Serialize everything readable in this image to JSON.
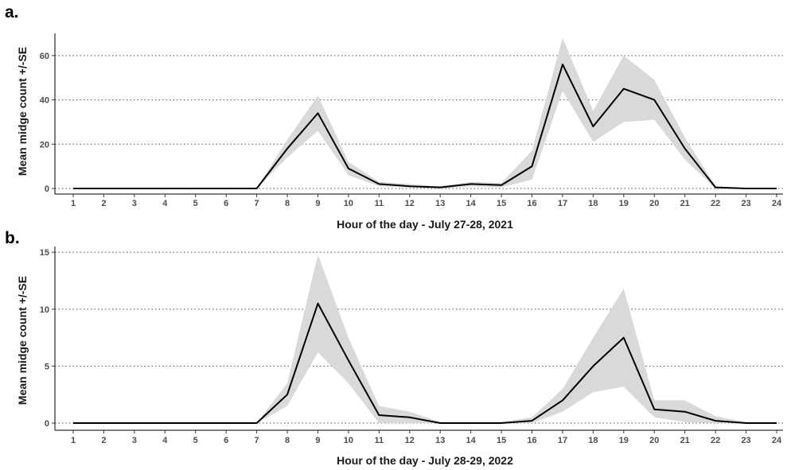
{
  "chart_data": [
    {
      "panel_label": "a.",
      "type": "area",
      "xlabel": "Hour of the day - July 27-28, 2021",
      "ylabel": "Mean midge count +/-SE",
      "xlim": [
        1,
        24
      ],
      "ylim": [
        0,
        70
      ],
      "yticks": [
        0,
        20,
        40,
        60
      ],
      "x": [
        "1",
        "2",
        "3",
        "4",
        "5",
        "6",
        "7",
        "8",
        "9",
        "10",
        "11",
        "12",
        "13",
        "14",
        "15",
        "16",
        "17",
        "18",
        "19",
        "20",
        "21",
        "22",
        "23",
        "24"
      ],
      "series": [
        {
          "values": [
            0,
            0,
            0,
            0,
            0,
            0,
            0,
            18,
            34,
            9,
            2,
            1,
            0.5,
            2,
            1.5,
            10,
            56,
            28,
            45,
            40,
            18,
            0.5,
            0,
            0
          ],
          "upper": [
            0,
            0,
            0,
            0,
            0,
            0,
            0,
            22,
            42,
            12,
            3,
            2,
            1,
            3,
            2.5,
            17,
            68,
            35,
            60,
            49,
            23,
            1,
            0,
            0
          ],
          "lower": [
            0,
            0,
            0,
            0,
            0,
            0,
            0,
            14,
            26,
            6,
            1,
            0.5,
            0,
            1,
            0.5,
            4,
            44,
            21,
            30,
            31,
            13,
            0,
            0,
            0
          ]
        }
      ],
      "grid": "horizontal dotted",
      "legend": "none"
    },
    {
      "panel_label": "b.",
      "type": "area",
      "xlabel": "Hour of the day - July 28-29, 2022",
      "ylabel": "Mean midge count +/-SE",
      "xlim": [
        1,
        24
      ],
      "ylim": [
        0,
        15.5
      ],
      "yticks": [
        0,
        5,
        10,
        15
      ],
      "x": [
        "1",
        "2",
        "3",
        "4",
        "5",
        "6",
        "7",
        "8",
        "9",
        "10",
        "11",
        "12",
        "13",
        "14",
        "15",
        "16",
        "17",
        "18",
        "19",
        "20",
        "21",
        "22",
        "23",
        "24"
      ],
      "series": [
        {
          "values": [
            0,
            0,
            0,
            0,
            0,
            0,
            0,
            2.5,
            10.5,
            5.5,
            0.7,
            0.5,
            0,
            0,
            0,
            0.2,
            2,
            5,
            7.5,
            1.2,
            1,
            0.2,
            0,
            0
          ],
          "upper": [
            0,
            0,
            0,
            0,
            0,
            0,
            0,
            3.5,
            14.8,
            7.5,
            1.5,
            1,
            0.1,
            0.1,
            0.1,
            0.5,
            3,
            7.5,
            11.8,
            2,
            2,
            0.6,
            0.1,
            0
          ],
          "lower": [
            0,
            0,
            0,
            0,
            0,
            0,
            0,
            1.5,
            6.2,
            3.5,
            0,
            0,
            0,
            0,
            0,
            0,
            1,
            2.7,
            3.2,
            0.5,
            0.1,
            0,
            0,
            0
          ]
        }
      ],
      "grid": "horizontal dotted",
      "legend": "none"
    }
  ]
}
